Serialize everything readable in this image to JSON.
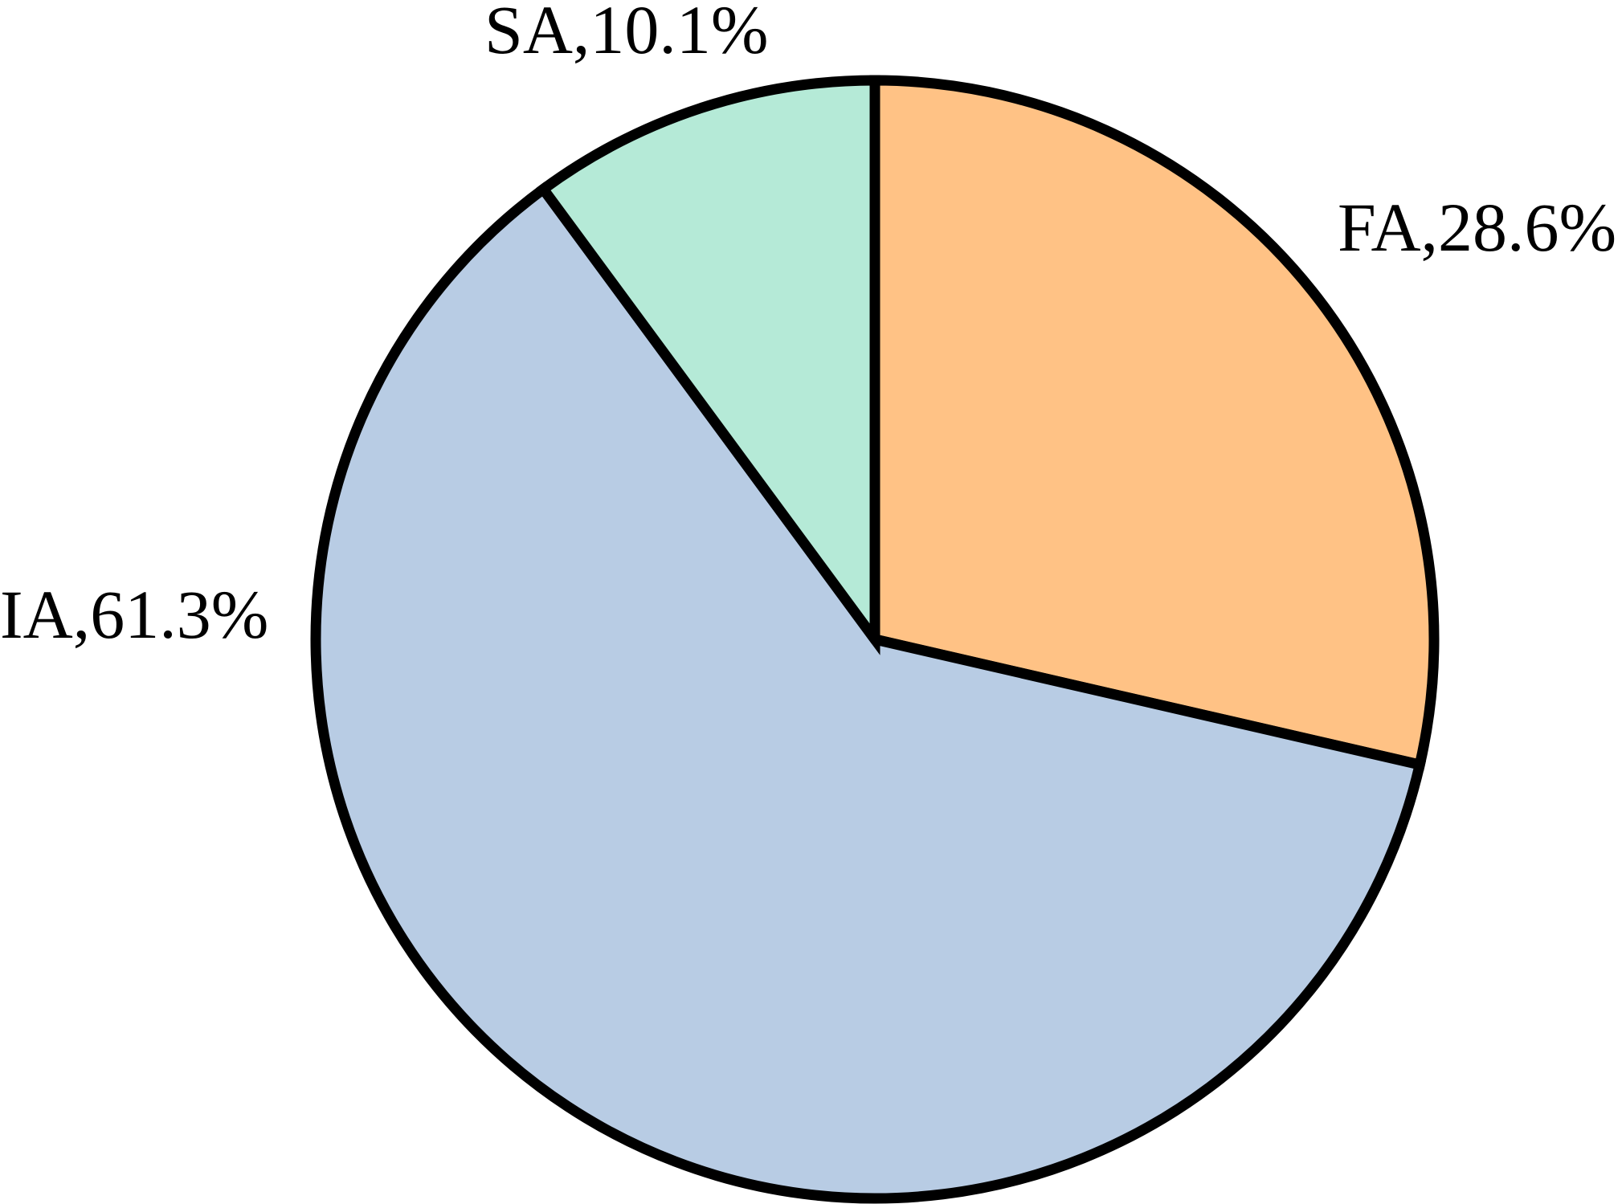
{
  "chart_data": {
    "type": "pie",
    "title": "",
    "slices": [
      {
        "label": "FA,28.6%",
        "category": "FA",
        "value": 28.6,
        "color": "#FFC285"
      },
      {
        "label": "IA,61.3%",
        "category": "IA",
        "value": 61.3,
        "color": "#B8CCE4"
      },
      {
        "label": "SA,10.1%",
        "category": "SA",
        "value": 10.1,
        "color": "#B5EAD7"
      }
    ],
    "start_angle": "12 o'clock",
    "direction": "clockwise",
    "outline_color": "#000000",
    "legend": "none"
  }
}
